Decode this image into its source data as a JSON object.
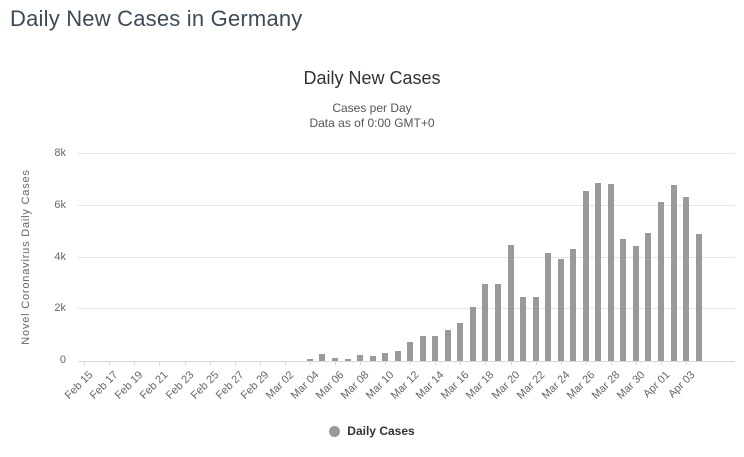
{
  "page": {
    "title": "Daily New Cases in Germany"
  },
  "chart": {
    "title": "Daily New Cases",
    "subtitle_line1": "Cases per Day",
    "subtitle_line2": "Data as of 0:00 GMT+0",
    "legend_label": "Daily Cases"
  },
  "colors": {
    "page_title": "#3d4b59",
    "chart_text": "#333333",
    "axis_text": "#666666",
    "bar": "#9a9a9a",
    "gridline": "#e6e6e6"
  },
  "chart_data": {
    "type": "bar",
    "title": "Daily New Cases",
    "subtitle": [
      "Cases per Day",
      "Data as of 0:00 GMT+0"
    ],
    "xlabel": "",
    "ylabel": "Novel Coronavirus Daily Cases",
    "ylim": [
      0,
      8000
    ],
    "yticks": [
      0,
      2000,
      4000,
      6000,
      8000
    ],
    "ytick_labels": [
      "0",
      "2k",
      "4k",
      "6k",
      "8k"
    ],
    "grid": "horizontal",
    "legend_position": "bottom-center",
    "legend_entries": [
      "Daily Cases"
    ],
    "bar_color": "#9a9a9a",
    "x_label_every": 2,
    "trailing_empty_slots": 2.4,
    "categories": [
      "Feb 15",
      "Feb 16",
      "Feb 17",
      "Feb 18",
      "Feb 19",
      "Feb 20",
      "Feb 21",
      "Feb 22",
      "Feb 23",
      "Feb 24",
      "Feb 25",
      "Feb 26",
      "Feb 27",
      "Feb 28",
      "Feb 29",
      "Mar 01",
      "Mar 02",
      "Mar 03",
      "Mar 04",
      "Mar 05",
      "Mar 06",
      "Mar 07",
      "Mar 08",
      "Mar 09",
      "Mar 10",
      "Mar 11",
      "Mar 12",
      "Mar 13",
      "Mar 14",
      "Mar 15",
      "Mar 16",
      "Mar 17",
      "Mar 18",
      "Mar 19",
      "Mar 20",
      "Mar 21",
      "Mar 22",
      "Mar 23",
      "Mar 24",
      "Mar 25",
      "Mar 26",
      "Mar 27",
      "Mar 28",
      "Mar 29",
      "Mar 30",
      "Mar 31",
      "Apr 01",
      "Apr 02",
      "Apr 03",
      "Apr 04"
    ],
    "values": [
      0,
      0,
      0,
      0,
      0,
      0,
      0,
      0,
      0,
      0,
      0,
      0,
      0,
      0,
      0,
      0,
      0,
      0,
      66,
      260,
      110,
      90,
      220,
      180,
      300,
      380,
      740,
      960,
      950,
      1210,
      1460,
      2090,
      2960,
      2990,
      4500,
      2480,
      2480,
      4180,
      3930,
      4340,
      6580,
      6890,
      6830,
      4720,
      4430,
      4930,
      6160,
      6790,
      6340,
      4920
    ]
  }
}
